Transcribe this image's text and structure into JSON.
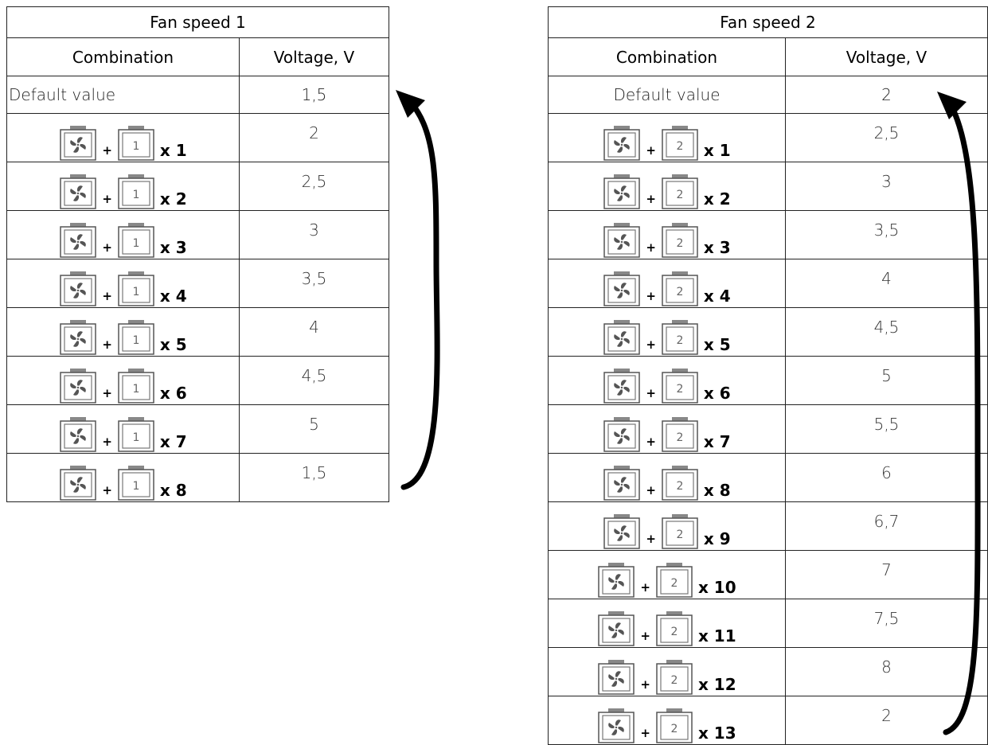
{
  "table1": {
    "title": "Fan speed 1",
    "col_combination": "Combination",
    "col_voltage": "Voltage, V",
    "default_label": "Default value",
    "default_value": "1,5",
    "button_number": "1",
    "rows": [
      {
        "mult": "x 1",
        "voltage": "2"
      },
      {
        "mult": "x 2",
        "voltage": "2,5"
      },
      {
        "mult": "x 3",
        "voltage": "3"
      },
      {
        "mult": "x 4",
        "voltage": "3,5"
      },
      {
        "mult": "x 5",
        "voltage": "4"
      },
      {
        "mult": "x 6",
        "voltage": "4,5"
      },
      {
        "mult": "x 7",
        "voltage": "5"
      },
      {
        "mult": "x 8",
        "voltage": "1,5"
      }
    ]
  },
  "table2": {
    "title": "Fan speed 2",
    "col_combination": "Combination",
    "col_voltage": "Voltage, V",
    "default_label": "Default value",
    "default_value": "2",
    "button_number": "2",
    "rows": [
      {
        "mult": "x 1",
        "voltage": "2,5"
      },
      {
        "mult": "x 2",
        "voltage": "3"
      },
      {
        "mult": "x 3",
        "voltage": "3,5"
      },
      {
        "mult": "x 4",
        "voltage": "4"
      },
      {
        "mult": "x 5",
        "voltage": "4,5"
      },
      {
        "mult": "x 6",
        "voltage": "5"
      },
      {
        "mult": "x 7",
        "voltage": "5,5"
      },
      {
        "mult": "x 8",
        "voltage": "6"
      },
      {
        "mult": "x 9",
        "voltage": "6,7"
      },
      {
        "mult": "x 10",
        "voltage": "7"
      },
      {
        "mult": "x 11",
        "voltage": "7,5"
      },
      {
        "mult": "x 12",
        "voltage": "8"
      },
      {
        "mult": "x 13",
        "voltage": "2"
      }
    ]
  },
  "icons": {
    "fan_button": "fan-button-icon",
    "number_button": "number-button-icon",
    "cycle_arrow": "cycle-arrow-icon"
  },
  "colors": {
    "border": "#222222",
    "icon": "#555555",
    "icon_fill": "#888888",
    "text": "#000000"
  }
}
